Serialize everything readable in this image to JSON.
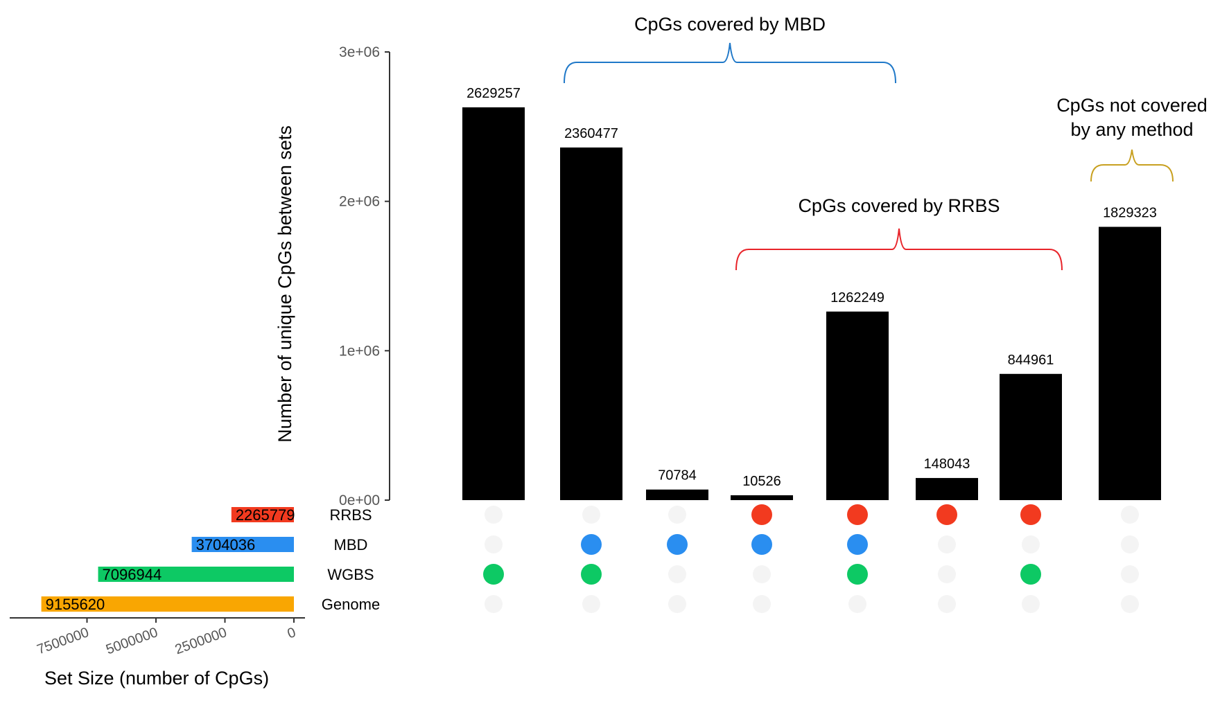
{
  "chart_data": {
    "type": "upset",
    "intersection_bars": {
      "ylabel": "Number of unique CpGs between sets",
      "ylim": [
        0,
        3000000
      ],
      "yticks": [
        {
          "value": 0,
          "label": "0e+00"
        },
        {
          "value": 1000000,
          "label": "1e+06"
        },
        {
          "value": 2000000,
          "label": "2e+06"
        },
        {
          "value": 3000000,
          "label": "3e+06"
        }
      ],
      "bar_color": "#000000",
      "bars": [
        {
          "value": 2629257,
          "label": "2629257",
          "sets": [
            "WGBS"
          ]
        },
        {
          "value": 2360477,
          "label": "2360477",
          "sets": [
            "MBD",
            "WGBS"
          ]
        },
        {
          "value": 70784,
          "label": "70784",
          "sets": [
            "MBD"
          ]
        },
        {
          "value": 10526,
          "label": "10526",
          "sets": [
            "RRBS",
            "MBD"
          ]
        },
        {
          "value": 1262249,
          "label": "1262249",
          "sets": [
            "RRBS",
            "MBD",
            "WGBS"
          ]
        },
        {
          "value": 148043,
          "label": "148043",
          "sets": [
            "RRBS"
          ]
        },
        {
          "value": 844961,
          "label": "844961",
          "sets": [
            "RRBS",
            "WGBS"
          ]
        },
        {
          "value": 1829323,
          "label": "1829323",
          "sets": []
        }
      ]
    },
    "sets": [
      {
        "name": "RRBS",
        "size": 2265779,
        "label": "2265779",
        "color": "#f23a1f"
      },
      {
        "name": "MBD",
        "size": 3704036,
        "label": "3704036",
        "color": "#2a8ef0"
      },
      {
        "name": "WGBS",
        "size": 7096944,
        "label": "7096944",
        "color": "#0dc964"
      },
      {
        "name": "Genome",
        "size": 9155620,
        "label": "9155620",
        "color": "#f9a602"
      }
    ],
    "set_size_axis": {
      "xlabel": "Set Size (number of CpGs)",
      "xlim": [
        0,
        10000000
      ],
      "reversed": true,
      "ticks": [
        {
          "value": 7500000,
          "label": "7500000"
        },
        {
          "value": 5000000,
          "label": "5000000"
        },
        {
          "value": 2500000,
          "label": "2500000"
        },
        {
          "value": 0,
          "label": "0"
        }
      ]
    },
    "annotations": [
      {
        "text": [
          "CpGs covered by MBD"
        ],
        "color": "#1f78c8",
        "from_bar": 1,
        "to_bar": 4
      },
      {
        "text": [
          "CpGs covered by RRBS"
        ],
        "color": "#e8242a",
        "from_bar": 3,
        "to_bar": 6
      },
      {
        "text": [
          "CpGs not covered",
          "by any method"
        ],
        "color": "#c8a020",
        "from_bar": 7,
        "to_bar": 7
      }
    ]
  }
}
